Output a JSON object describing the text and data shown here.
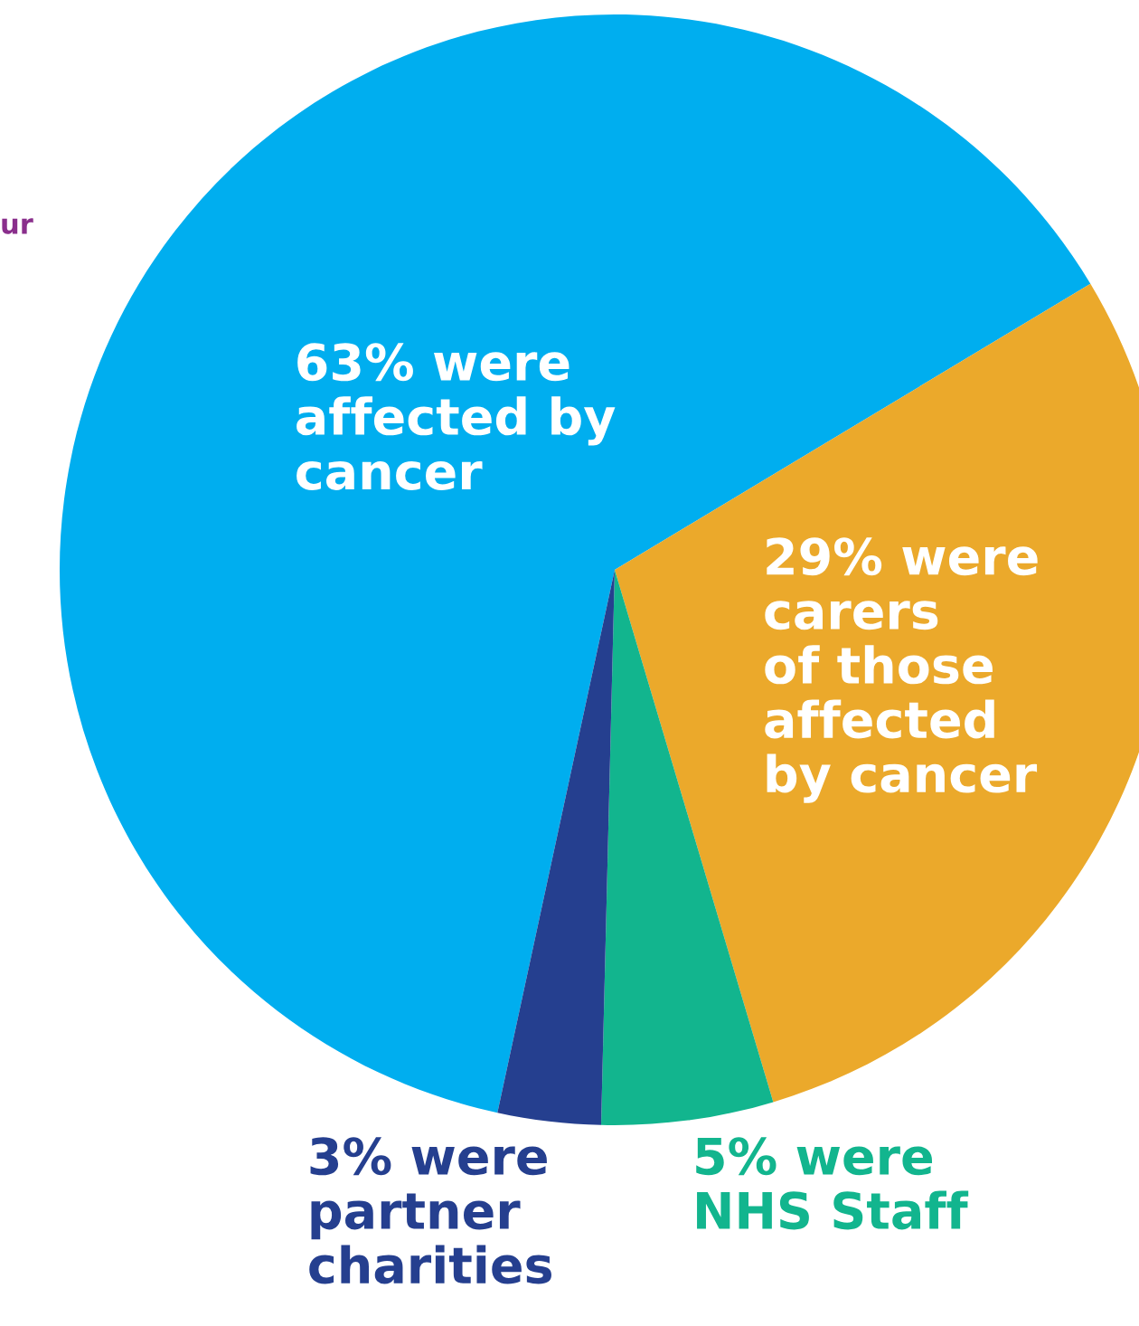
{
  "chart_data": {
    "type": "pie",
    "categories": [
      null,
      null,
      null,
      null
    ],
    "values": [
      63,
      29,
      5,
      3
    ],
    "colors": [
      "#00aeef",
      "#eba92b",
      "#12b58e",
      "#253f8f"
    ],
    "value_labels": [
      "63% were\naffected by\ncancer",
      "29% were\ncarers\nof those\naffected\nby cancer",
      "5% were\nNHS Staff",
      "3% were\npartner\ncharities"
    ],
    "annotations": [
      "ur"
    ]
  }
}
